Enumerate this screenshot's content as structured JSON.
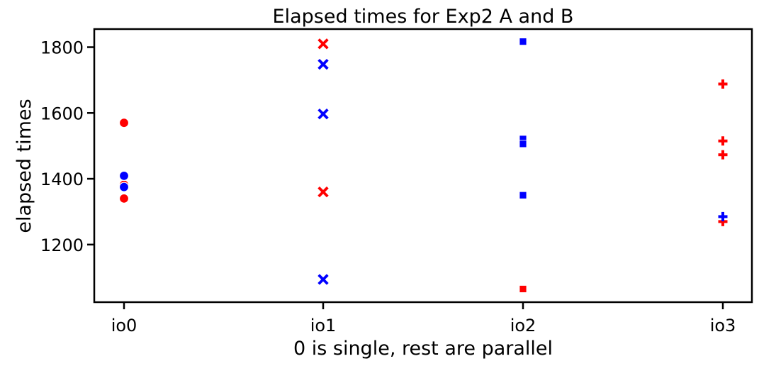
{
  "chart_data": {
    "type": "scatter",
    "title": "Elapsed times for Exp2 A and B",
    "xlabel": "0 is single, rest are parallel",
    "ylabel": "elapsed times",
    "categories": [
      "io0",
      "io1",
      "io2",
      "io3"
    ],
    "ylim": [
      1025,
      1855
    ],
    "yticks": [
      1200,
      1400,
      1600,
      1800
    ],
    "grid": false,
    "legend": "none",
    "series": [
      {
        "color": "#ff0000",
        "points": [
          {
            "x": "io0",
            "y": 1570,
            "marker": "circle"
          },
          {
            "x": "io0",
            "y": 1382,
            "marker": "circle"
          },
          {
            "x": "io0",
            "y": 1340,
            "marker": "circle"
          },
          {
            "x": "io1",
            "y": 1810,
            "marker": "x"
          },
          {
            "x": "io1",
            "y": 1360,
            "marker": "x"
          },
          {
            "x": "io2",
            "y": 1065,
            "marker": "square"
          },
          {
            "x": "io3",
            "y": 1688,
            "marker": "plus"
          },
          {
            "x": "io3",
            "y": 1515,
            "marker": "plus"
          },
          {
            "x": "io3",
            "y": 1473,
            "marker": "plus"
          },
          {
            "x": "io3",
            "y": 1270,
            "marker": "plus"
          }
        ]
      },
      {
        "color": "#0000ff",
        "points": [
          {
            "x": "io0",
            "y": 1409,
            "marker": "circle"
          },
          {
            "x": "io0",
            "y": 1375,
            "marker": "circle"
          },
          {
            "x": "io1",
            "y": 1748,
            "marker": "x"
          },
          {
            "x": "io1",
            "y": 1597,
            "marker": "x"
          },
          {
            "x": "io1",
            "y": 1094,
            "marker": "x"
          },
          {
            "x": "io2",
            "y": 1817,
            "marker": "square"
          },
          {
            "x": "io2",
            "y": 1521,
            "marker": "square"
          },
          {
            "x": "io2",
            "y": 1506,
            "marker": "square"
          },
          {
            "x": "io2",
            "y": 1350,
            "marker": "square"
          },
          {
            "x": "io3",
            "y": 1285,
            "marker": "plus"
          }
        ]
      }
    ]
  }
}
